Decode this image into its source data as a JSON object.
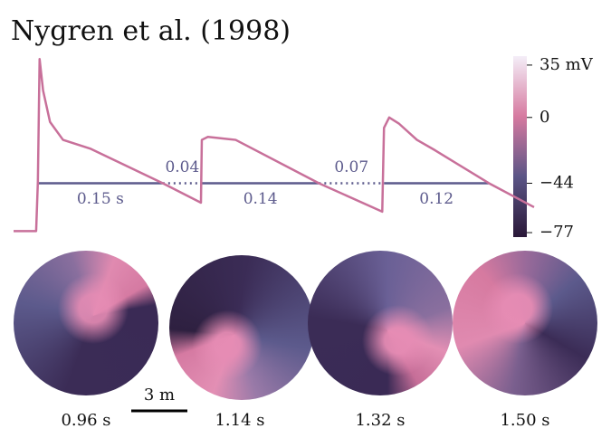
{
  "chart_data": {
    "type": "line",
    "title": "Nygren et al. (1998)",
    "x": [
      0,
      0.026,
      0.028,
      0.03,
      0.034,
      0.042,
      0.057,
      0.089,
      0.172,
      0.216,
      0.217,
      0.224,
      0.256,
      0.352,
      0.425,
      0.427,
      0.433,
      0.444,
      0.465,
      0.486,
      0.548,
      0.6
    ],
    "series": [
      {
        "color": "#c8709a",
        "values": [
          -76,
          -76,
          -43,
          39,
          18,
          -3,
          -15,
          -21,
          -44,
          -57,
          -15,
          -13,
          -15,
          -44,
          -63,
          -7,
          0,
          -4,
          -15,
          -22,
          -44,
          -60
        ]
      }
    ],
    "xlim": [
      0,
      0.6
    ],
    "ylim": [
      -80,
      41
    ],
    "yticks": [
      {
        "value": 35,
        "label": "35 mV"
      },
      0,
      {
        "value": -44,
        "label": "−44"
      },
      {
        "value": -77,
        "label": "−77"
      }
    ],
    "colormap": [
      "#2a1838",
      "#5b5586",
      "#d67aa0",
      "#f4eef8"
    ],
    "threshold_color": "#5c5a8c",
    "intervals": [
      {
        "start": 0.028,
        "end": 0.172,
        "label": "0.15 s",
        "style": "solid"
      },
      {
        "start": 0.172,
        "end": 0.217,
        "label": "0.04",
        "style": "dotted"
      },
      {
        "start": 0.217,
        "end": 0.352,
        "label": "0.14",
        "style": "solid"
      },
      {
        "start": 0.352,
        "end": 0.427,
        "label": "0.07",
        "style": "dotted"
      },
      {
        "start": 0.427,
        "end": 0.548,
        "label": "0.12",
        "style": "solid"
      }
    ],
    "snapshots": [
      "0.96 s",
      "1.14 s",
      "1.32 s",
      "1.50 s"
    ],
    "scale_bar": "3 m"
  }
}
